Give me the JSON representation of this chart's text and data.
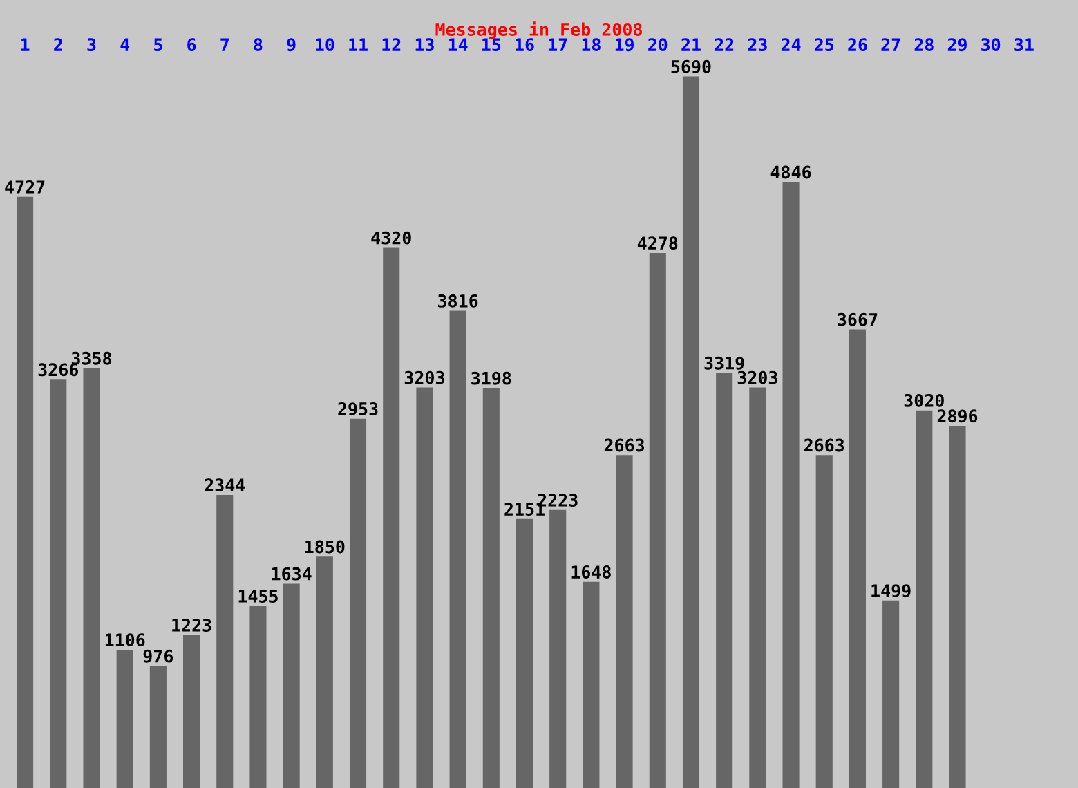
{
  "chart_data": {
    "type": "bar",
    "title": "Messages in Feb 2008",
    "categories": [
      "1",
      "2",
      "3",
      "4",
      "5",
      "6",
      "7",
      "8",
      "9",
      "10",
      "11",
      "12",
      "13",
      "14",
      "15",
      "16",
      "17",
      "18",
      "19",
      "20",
      "21",
      "22",
      "23",
      "24",
      "25",
      "26",
      "27",
      "28",
      "29",
      "30",
      "31"
    ],
    "values": [
      4727,
      3266,
      3358,
      1106,
      976,
      1223,
      2344,
      1455,
      1634,
      1850,
      2953,
      4320,
      3203,
      3816,
      3198,
      2151,
      2223,
      1648,
      2663,
      4278,
      5690,
      3319,
      3203,
      4846,
      2663,
      3667,
      1499,
      3020,
      2896,
      null,
      null
    ],
    "color": "#666666",
    "data_labels": true,
    "grid": false,
    "legend": false
  }
}
